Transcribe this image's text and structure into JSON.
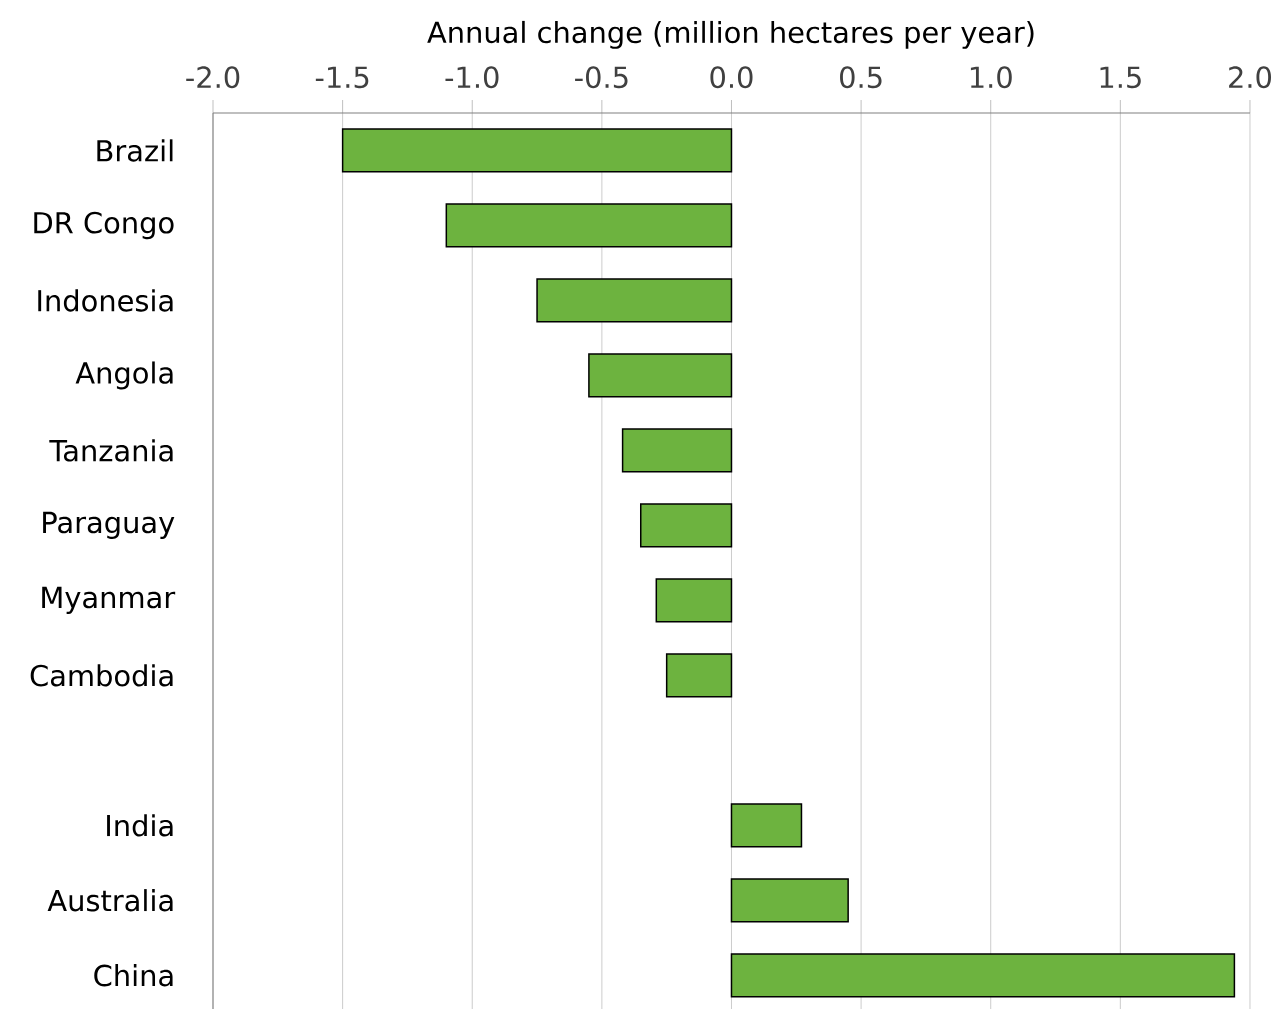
{
  "chart_data": {
    "type": "bar",
    "orientation": "horizontal",
    "xlabel": "Annual change (million hectares per year)",
    "categories": [
      "Brazil",
      "DR Congo",
      "Indonesia",
      "Angola",
      "Tanzania",
      "Paraguay",
      "Myanmar",
      "Cambodia",
      null,
      "India",
      "Australia",
      "China"
    ],
    "values": [
      -1.5,
      -1.1,
      -0.75,
      -0.55,
      -0.42,
      -0.35,
      -0.29,
      -0.25,
      null,
      0.27,
      0.45,
      1.94
    ],
    "color": "#6db33f",
    "xlim": [
      -2,
      2
    ],
    "xticks": [
      {
        "value": -2,
        "label": "-2.0"
      },
      -1.5,
      {
        "value": -1,
        "label": "-1.0"
      },
      -0.5,
      {
        "value": 0,
        "label": "0.0"
      },
      0.5,
      {
        "value": 1,
        "label": "1.0"
      },
      1.5,
      {
        "value": 2,
        "label": "2.0"
      }
    ],
    "grid": "x"
  }
}
